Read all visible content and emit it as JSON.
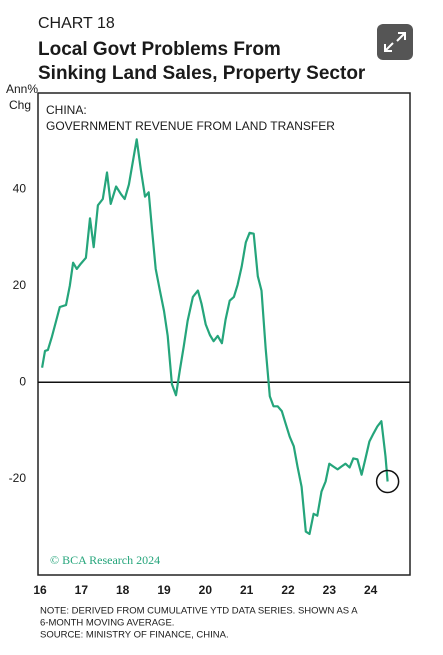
{
  "chart_data": {
    "type": "line",
    "chart_label": "CHART 18",
    "title": [
      "Local Govt Problems From",
      "Sinking Land Sales, Property Sector"
    ],
    "ylabel": [
      "Ann%",
      "Chg"
    ],
    "subtitle": [
      "CHINA:",
      "GOVERNMENT REVENUE FROM LAND TRANSFER"
    ],
    "credit": "© BCA Research 2024",
    "notes": [
      "NOTE: DERIVED FROM CUMULATIVE YTD DATA SERIES. SHOWN AS A",
      "6-MONTH MOVING AVERAGE.",
      "SOURCE: MINISTRY OF FINANCE, CHINA."
    ],
    "x": [
      16.05,
      16.12,
      16.19,
      16.29,
      16.39,
      16.48,
      16.63,
      16.72,
      16.8,
      16.89,
      16.99,
      17.11,
      17.21,
      17.3,
      17.4,
      17.52,
      17.62,
      17.71,
      17.84,
      17.96,
      18.05,
      18.15,
      18.34,
      18.44,
      18.54,
      18.63,
      18.71,
      18.8,
      18.9,
      19.0,
      19.09,
      19.19,
      19.29,
      19.38,
      19.48,
      19.57,
      19.7,
      19.82,
      19.91,
      20.01,
      20.11,
      20.2,
      20.3,
      20.4,
      20.49,
      20.59,
      20.69,
      20.78,
      20.88,
      20.98,
      21.07,
      21.17,
      21.27,
      21.36,
      21.46,
      21.56,
      21.65,
      21.75,
      21.85,
      21.94,
      22.04,
      22.14,
      22.23,
      22.33,
      22.43,
      22.52,
      22.62,
      22.71,
      22.81,
      22.91,
      23.0,
      23.1,
      23.2,
      23.29,
      23.39,
      23.49,
      23.58,
      23.68,
      23.78,
      23.87,
      23.97,
      24.07,
      24.16,
      24.26,
      24.36,
      24.41
    ],
    "series": [
      {
        "name": "Government revenue from land transfer",
        "color": "#25a57b",
        "values": [
          3,
          6.5,
          6.7,
          9.5,
          12.7,
          15.6,
          16,
          20,
          24.8,
          23.5,
          24.6,
          25.8,
          34,
          28,
          36.7,
          38,
          43.5,
          37,
          40.6,
          39,
          38,
          41,
          50.4,
          44,
          38.5,
          39.4,
          31.7,
          23.5,
          19,
          14.8,
          9.6,
          -0.4,
          -2.7,
          2.3,
          7.5,
          12.7,
          17.7,
          19,
          16.2,
          12,
          9.8,
          8.5,
          9.6,
          8.1,
          13,
          16.9,
          17.7,
          20.2,
          24,
          29,
          31,
          30.8,
          22,
          19,
          6.9,
          -2.9,
          -5,
          -5,
          -6,
          -8.5,
          -11.3,
          -13.3,
          -17.5,
          -21.7,
          -31,
          -31.5,
          -27.3,
          -27.7,
          -22.7,
          -20.6,
          -16.9,
          -17.5,
          -18.1,
          -17.5,
          -16.9,
          -17.7,
          -15.8,
          -16,
          -19.2,
          -16,
          -12.3,
          -10.6,
          -9.2,
          -8.1,
          -15.4,
          -20.6
        ]
      }
    ],
    "xlim": [
      16,
      25
    ],
    "xticks": [
      16,
      17,
      18,
      19,
      20,
      21,
      22,
      23,
      24
    ],
    "ylim": [
      -40,
      60
    ],
    "yticks": [
      -20,
      0,
      20,
      40
    ],
    "zero_line": true,
    "grid": false,
    "highlight_last": true
  }
}
